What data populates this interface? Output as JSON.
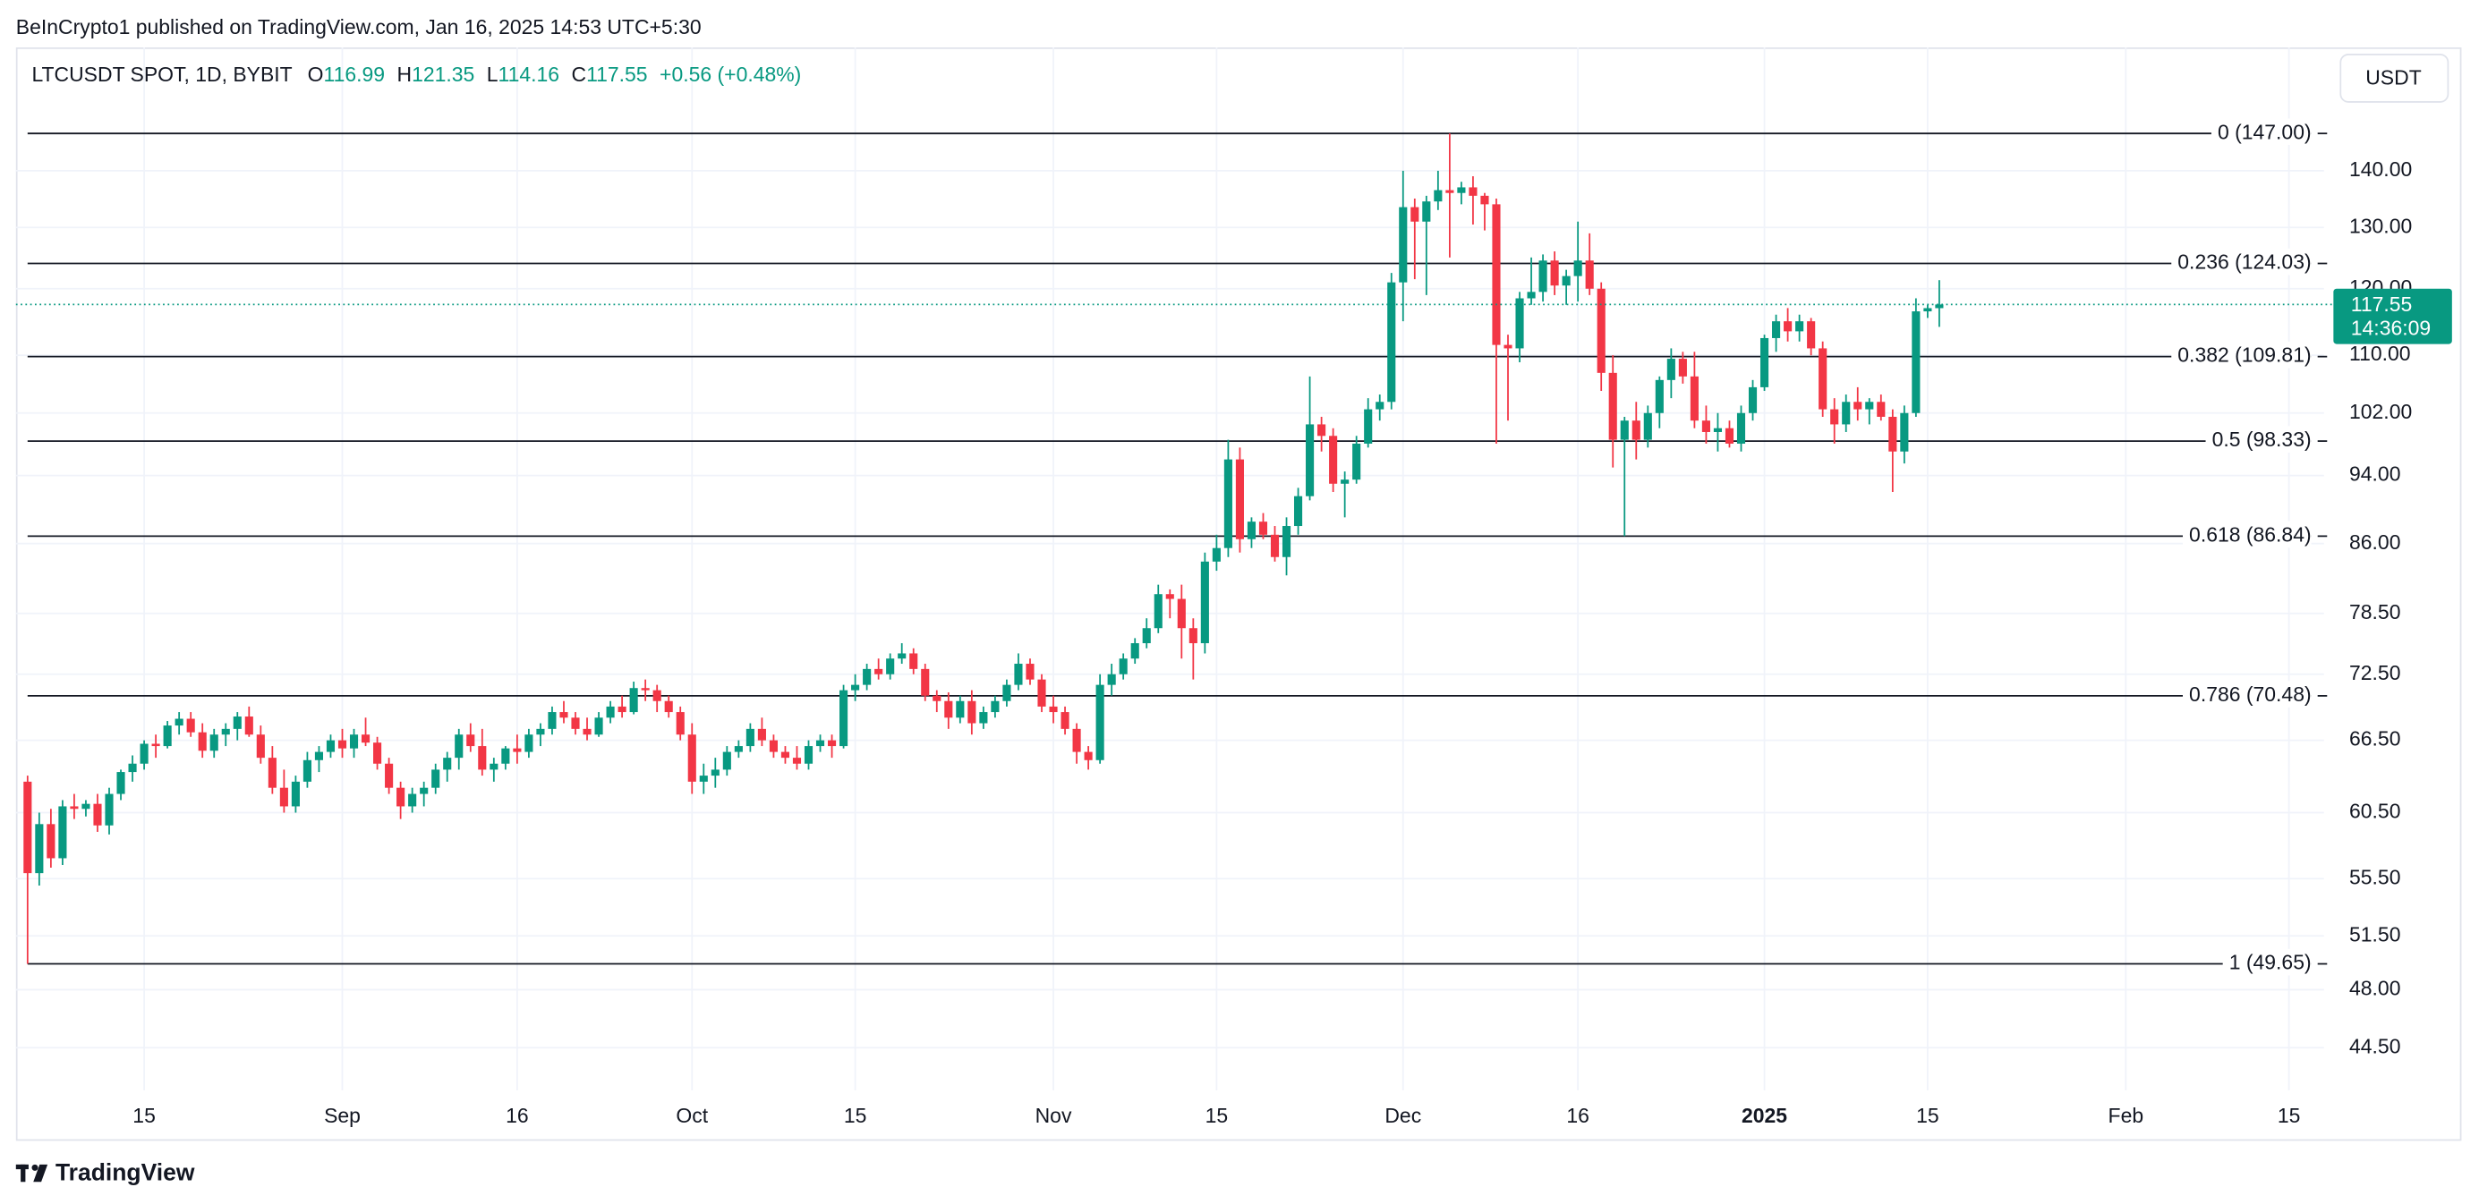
{
  "chart_data": {
    "type": "candlestick",
    "published": "BeInCrypto1 published on TradingView.com, Jan 16, 2025 14:53 UTC+5:30",
    "symbol": "LTCUSDT SPOT, 1D, BYBIT",
    "ohlc_labels": [
      "O",
      "H",
      "L",
      "C"
    ],
    "change": "+0.56 (+0.48%)",
    "currency": "USDT",
    "countdown": "14:36:09",
    "watermark": "TradingView",
    "up_color": "#089981",
    "down_color": "#f23645",
    "log_scale": true,
    "grid": true,
    "x": [
      "2024-08-05",
      "2024-08-06",
      "2024-08-07",
      "2024-08-08",
      "2024-08-09",
      "2024-08-10",
      "2024-08-11",
      "2024-08-12",
      "2024-08-13",
      "2024-08-14",
      "2024-08-15",
      "2024-08-16",
      "2024-08-17",
      "2024-08-18",
      "2024-08-19",
      "2024-08-20",
      "2024-08-21",
      "2024-08-22",
      "2024-08-23",
      "2024-08-24",
      "2024-08-25",
      "2024-08-26",
      "2024-08-27",
      "2024-08-28",
      "2024-08-29",
      "2024-08-30",
      "2024-08-31",
      "2024-09-01",
      "2024-09-02",
      "2024-09-03",
      "2024-09-04",
      "2024-09-05",
      "2024-09-06",
      "2024-09-07",
      "2024-09-08",
      "2024-09-09",
      "2024-09-10",
      "2024-09-11",
      "2024-09-12",
      "2024-09-13",
      "2024-09-14",
      "2024-09-15",
      "2024-09-16",
      "2024-09-17",
      "2024-09-18",
      "2024-09-19",
      "2024-09-20",
      "2024-09-21",
      "2024-09-22",
      "2024-09-23",
      "2024-09-24",
      "2024-09-25",
      "2024-09-26",
      "2024-09-27",
      "2024-09-28",
      "2024-09-29",
      "2024-09-30",
      "2024-10-01",
      "2024-10-02",
      "2024-10-03",
      "2024-10-04",
      "2024-10-05",
      "2024-10-06",
      "2024-10-07",
      "2024-10-08",
      "2024-10-09",
      "2024-10-10",
      "2024-10-11",
      "2024-10-12",
      "2024-10-13",
      "2024-10-14",
      "2024-10-15",
      "2024-10-16",
      "2024-10-17",
      "2024-10-18",
      "2024-10-19",
      "2024-10-20",
      "2024-10-21",
      "2024-10-22",
      "2024-10-23",
      "2024-10-24",
      "2024-10-25",
      "2024-10-26",
      "2024-10-27",
      "2024-10-28",
      "2024-10-29",
      "2024-10-30",
      "2024-10-31",
      "2024-11-01",
      "2024-11-02",
      "2024-11-03",
      "2024-11-04",
      "2024-11-05",
      "2024-11-06",
      "2024-11-07",
      "2024-11-08",
      "2024-11-09",
      "2024-11-10",
      "2024-11-11",
      "2024-11-12",
      "2024-11-13",
      "2024-11-14",
      "2024-11-15",
      "2024-11-16",
      "2024-11-17",
      "2024-11-18",
      "2024-11-19",
      "2024-11-20",
      "2024-11-21",
      "2024-11-22",
      "2024-11-23",
      "2024-11-24",
      "2024-11-25",
      "2024-11-26",
      "2024-11-27",
      "2024-11-28",
      "2024-11-29",
      "2024-11-30",
      "2024-12-01",
      "2024-12-02",
      "2024-12-03",
      "2024-12-04",
      "2024-12-05",
      "2024-12-06",
      "2024-12-07",
      "2024-12-08",
      "2024-12-09",
      "2024-12-10",
      "2024-12-11",
      "2024-12-12",
      "2024-12-13",
      "2024-12-14",
      "2024-12-15",
      "2024-12-16",
      "2024-12-17",
      "2024-12-18",
      "2024-12-19",
      "2024-12-20",
      "2024-12-21",
      "2024-12-22",
      "2024-12-23",
      "2024-12-24",
      "2024-12-25",
      "2024-12-26",
      "2024-12-27",
      "2024-12-28",
      "2024-12-29",
      "2024-12-30",
      "2024-12-31",
      "2025-01-01",
      "2025-01-02",
      "2025-01-03",
      "2025-01-04",
      "2025-01-05",
      "2025-01-06",
      "2025-01-07",
      "2025-01-08",
      "2025-01-09",
      "2025-01-10",
      "2025-01-11",
      "2025-01-12",
      "2025-01-13",
      "2025-01-14",
      "2025-01-15",
      "2025-01-16"
    ],
    "open": [
      63.0,
      55.9,
      59.6,
      57.0,
      61.0,
      60.8,
      61.2,
      59.5,
      62.0,
      63.8,
      64.5,
      66.2,
      66.0,
      67.8,
      68.4,
      67.2,
      65.6,
      67.0,
      67.5,
      68.6,
      67.0,
      65.0,
      62.5,
      61.0,
      63.0,
      64.8,
      65.5,
      66.5,
      65.8,
      67.0,
      66.3,
      64.5,
      62.5,
      61.0,
      62.0,
      62.5,
      64.0,
      65.0,
      67.0,
      66.0,
      64.0,
      64.5,
      65.8,
      65.5,
      67.0,
      67.5,
      69.0,
      68.5,
      67.5,
      67.0,
      68.5,
      69.5,
      69.0,
      71.2,
      71.0,
      70.0,
      69.0,
      67.0,
      63.0,
      63.5,
      64.0,
      65.5,
      66.0,
      67.5,
      66.5,
      65.5,
      65.0,
      64.5,
      66.0,
      66.5,
      66.0,
      71.0,
      71.5,
      73.0,
      72.5,
      74.0,
      74.5,
      73.0,
      70.5,
      70.0,
      68.5,
      70.0,
      68.0,
      69.0,
      70.0,
      71.5,
      73.5,
      72.0,
      69.5,
      69.0,
      67.5,
      65.5,
      64.8,
      71.5,
      72.5,
      74.0,
      75.5,
      77.0,
      80.5,
      80.0,
      77.0,
      75.5,
      84.0,
      85.5,
      96.0,
      86.5,
      88.5,
      87.0,
      84.5,
      88.0,
      91.5,
      100.5,
      99.0,
      93.0,
      93.5,
      98.0,
      102.5,
      103.5,
      121.0,
      133.5,
      131.0,
      134.5,
      136.5,
      136.0,
      137.0,
      135.5,
      134.0,
      111.5,
      111.0,
      118.5,
      119.5,
      124.5,
      120.5,
      122.0,
      124.5,
      120.0,
      107.5,
      98.5,
      101.0,
      98.5,
      102.0,
      106.5,
      109.5,
      107.0,
      101.0,
      99.5,
      100.0,
      98.0,
      102.0,
      105.5,
      112.5,
      115.0,
      113.5,
      115.0,
      111.0,
      102.5,
      100.5,
      103.5,
      102.5,
      103.5,
      101.5,
      97.0,
      102.0,
      116.5,
      116.99
    ],
    "high": [
      63.5,
      60.5,
      60.8,
      61.5,
      62.0,
      61.5,
      62.0,
      62.5,
      64.0,
      65.2,
      66.5,
      67.0,
      68.2,
      69.0,
      69.0,
      68.0,
      67.5,
      68.0,
      69.0,
      69.5,
      67.8,
      66.0,
      64.0,
      63.5,
      65.5,
      66.0,
      67.0,
      67.5,
      67.5,
      68.5,
      66.8,
      65.0,
      63.0,
      62.5,
      63.0,
      64.5,
      65.5,
      67.5,
      68.0,
      67.5,
      65.0,
      66.0,
      67.0,
      67.5,
      68.0,
      69.5,
      70.0,
      69.0,
      68.5,
      69.0,
      70.0,
      70.5,
      71.8,
      72.0,
      71.5,
      70.5,
      69.5,
      68.0,
      64.5,
      65.0,
      66.0,
      66.5,
      68.0,
      68.5,
      67.0,
      66.0,
      66.0,
      66.5,
      67.0,
      67.0,
      71.5,
      72.5,
      73.5,
      74.0,
      74.5,
      75.5,
      75.0,
      73.5,
      71.0,
      70.8,
      70.5,
      71.0,
      69.5,
      70.5,
      72.0,
      74.5,
      74.0,
      72.5,
      70.5,
      69.5,
      68.0,
      66.0,
      72.5,
      73.5,
      74.5,
      76.0,
      78.0,
      81.5,
      81.0,
      81.5,
      78.0,
      85.0,
      87.0,
      98.5,
      97.5,
      89.0,
      89.5,
      88.0,
      89.0,
      92.5,
      107.0,
      101.5,
      100.0,
      94.5,
      99.0,
      104.0,
      104.5,
      122.5,
      140.0,
      135.0,
      135.5,
      140.0,
      147.0,
      138.0,
      139.0,
      136.0,
      135.0,
      113.0,
      119.5,
      125.0,
      125.5,
      126.0,
      123.0,
      131.0,
      129.0,
      121.0,
      110.0,
      101.5,
      103.5,
      103.0,
      107.0,
      111.0,
      110.5,
      110.5,
      103.0,
      102.0,
      101.0,
      103.0,
      106.5,
      113.0,
      116.0,
      117.0,
      116.0,
      115.5,
      112.0,
      104.0,
      104.5,
      105.5,
      104.0,
      104.5,
      102.5,
      103.0,
      118.5,
      117.5,
      121.35
    ],
    "low": [
      49.65,
      55.0,
      56.3,
      56.5,
      60.0,
      60.2,
      59.0,
      58.8,
      61.5,
      63.0,
      64.0,
      65.0,
      65.8,
      67.0,
      66.8,
      65.0,
      65.0,
      66.0,
      66.5,
      66.8,
      64.5,
      62.0,
      60.5,
      60.5,
      62.5,
      63.8,
      65.0,
      65.0,
      65.0,
      66.0,
      64.0,
      62.0,
      60.0,
      60.5,
      61.0,
      62.0,
      63.0,
      64.0,
      65.5,
      63.5,
      63.0,
      64.0,
      64.5,
      65.0,
      66.0,
      67.0,
      68.0,
      67.0,
      66.5,
      66.8,
      68.0,
      68.5,
      68.8,
      70.0,
      69.0,
      68.5,
      66.5,
      62.0,
      62.0,
      62.5,
      63.5,
      65.0,
      65.5,
      66.0,
      65.0,
      64.5,
      64.0,
      64.0,
      65.5,
      65.0,
      65.8,
      70.0,
      71.0,
      72.0,
      72.0,
      73.5,
      72.5,
      70.0,
      69.0,
      67.5,
      68.0,
      67.0,
      67.5,
      68.5,
      69.5,
      71.0,
      71.5,
      69.0,
      68.0,
      67.0,
      64.5,
      64.0,
      64.5,
      70.5,
      72.0,
      73.5,
      75.0,
      76.5,
      78.0,
      74.0,
      72.0,
      74.5,
      83.0,
      84.5,
      85.0,
      85.5,
      86.5,
      84.0,
      82.5,
      87.0,
      91.0,
      97.0,
      92.0,
      89.0,
      93.0,
      97.5,
      101.0,
      102.5,
      115.0,
      121.5,
      119.0,
      133.0,
      125.0,
      134.0,
      130.5,
      129.5,
      98.0,
      101.0,
      109.0,
      117.5,
      118.0,
      119.0,
      117.5,
      118.0,
      119.0,
      105.0,
      95.0,
      86.84,
      96.0,
      97.5,
      100.0,
      104.0,
      106.0,
      100.0,
      98.0,
      97.0,
      97.5,
      97.0,
      101.0,
      105.0,
      110.5,
      112.0,
      112.0,
      110.0,
      101.5,
      98.0,
      99.5,
      101.0,
      100.5,
      101.0,
      92.0,
      95.5,
      101.5,
      115.5,
      114.16
    ],
    "close": [
      55.9,
      59.6,
      57.0,
      61.0,
      60.8,
      61.2,
      59.5,
      62.0,
      63.8,
      64.5,
      66.2,
      66.0,
      67.8,
      68.4,
      67.2,
      65.6,
      67.0,
      67.5,
      68.6,
      67.0,
      65.0,
      62.5,
      61.0,
      63.0,
      64.8,
      65.5,
      66.5,
      65.8,
      67.0,
      66.3,
      64.5,
      62.5,
      61.0,
      62.0,
      62.5,
      64.0,
      65.0,
      67.0,
      66.0,
      64.0,
      64.5,
      65.8,
      65.5,
      67.0,
      67.5,
      69.0,
      68.5,
      67.5,
      67.0,
      68.5,
      69.5,
      69.0,
      71.2,
      71.0,
      70.0,
      69.0,
      67.0,
      63.0,
      63.5,
      64.0,
      65.5,
      66.0,
      67.5,
      66.5,
      65.5,
      65.0,
      64.5,
      66.0,
      66.5,
      66.0,
      71.0,
      71.5,
      73.0,
      72.5,
      74.0,
      74.5,
      73.0,
      70.5,
      70.0,
      68.5,
      70.0,
      68.0,
      69.0,
      70.0,
      71.5,
      73.5,
      72.0,
      69.5,
      69.0,
      67.5,
      65.5,
      64.8,
      71.5,
      72.5,
      74.0,
      75.5,
      77.0,
      80.5,
      80.0,
      77.0,
      75.5,
      84.0,
      85.5,
      96.0,
      86.5,
      88.5,
      87.0,
      84.5,
      88.0,
      91.5,
      100.5,
      99.0,
      93.0,
      93.5,
      98.0,
      102.5,
      103.5,
      121.0,
      133.5,
      131.0,
      134.5,
      136.5,
      136.0,
      137.0,
      135.5,
      134.0,
      111.5,
      111.0,
      118.5,
      119.5,
      124.5,
      120.5,
      122.0,
      124.5,
      120.0,
      107.5,
      98.5,
      101.0,
      98.5,
      102.0,
      106.5,
      109.5,
      107.0,
      101.0,
      99.5,
      100.0,
      98.0,
      102.0,
      105.5,
      112.5,
      115.0,
      113.5,
      115.0,
      111.0,
      102.5,
      100.5,
      103.5,
      102.5,
      103.5,
      101.5,
      97.0,
      102.0,
      116.5,
      116.99,
      117.55
    ],
    "xlim": [
      "2024-08-04",
      "2025-02-18"
    ],
    "xticks": [
      {
        "value": "2024-08-15",
        "label": "15"
      },
      {
        "value": "2024-09-01",
        "label": "Sep"
      },
      {
        "value": "2024-09-16",
        "label": "16"
      },
      {
        "value": "2024-10-01",
        "label": "Oct"
      },
      {
        "value": "2024-10-15",
        "label": "15"
      },
      {
        "value": "2024-11-01",
        "label": "Nov"
      },
      {
        "value": "2024-11-15",
        "label": "15"
      },
      {
        "value": "2024-12-01",
        "label": "Dec"
      },
      {
        "value": "2024-12-16",
        "label": "16"
      },
      {
        "value": "2025-01-01",
        "label": "2025"
      },
      {
        "value": "2025-01-15",
        "label": "15"
      },
      {
        "value": "2025-02-01",
        "label": "Feb"
      },
      {
        "value": "2025-02-15",
        "label": "15"
      }
    ],
    "ylim": [
      42.09,
      164.5
    ],
    "yticks": [
      {
        "value": 44.5,
        "label": "44.50"
      },
      {
        "value": 48,
        "label": "48.00"
      },
      {
        "value": 51.5,
        "label": "51.50"
      },
      {
        "value": 55.5,
        "label": "55.50"
      },
      {
        "value": 60.5,
        "label": "60.50"
      },
      {
        "value": 66.5,
        "label": "66.50"
      },
      {
        "value": 72.5,
        "label": "72.50"
      },
      {
        "value": 78.5,
        "label": "78.50"
      },
      {
        "value": 86,
        "label": "86.00"
      },
      {
        "value": 94,
        "label": "94.00"
      },
      {
        "value": 102,
        "label": "102.00"
      },
      {
        "value": 110,
        "label": "110.00"
      },
      {
        "value": 120,
        "label": "120.00"
      },
      {
        "value": 130,
        "label": "130.00"
      },
      {
        "value": 140,
        "label": "140.00"
      }
    ],
    "fib_levels": [
      {
        "value": 147,
        "label": "0 (147.00)"
      },
      {
        "value": 124.03,
        "label": "0.236 (124.03)"
      },
      {
        "value": 109.81,
        "label": "0.382 (109.81)"
      },
      {
        "value": 98.33,
        "label": "0.5 (98.33)"
      },
      {
        "value": 86.84,
        "label": "0.618 (86.84)"
      },
      {
        "value": 70.48,
        "label": "0.786 (70.48)"
      },
      {
        "value": 49.65,
        "label": "1 (49.65)"
      }
    ]
  }
}
